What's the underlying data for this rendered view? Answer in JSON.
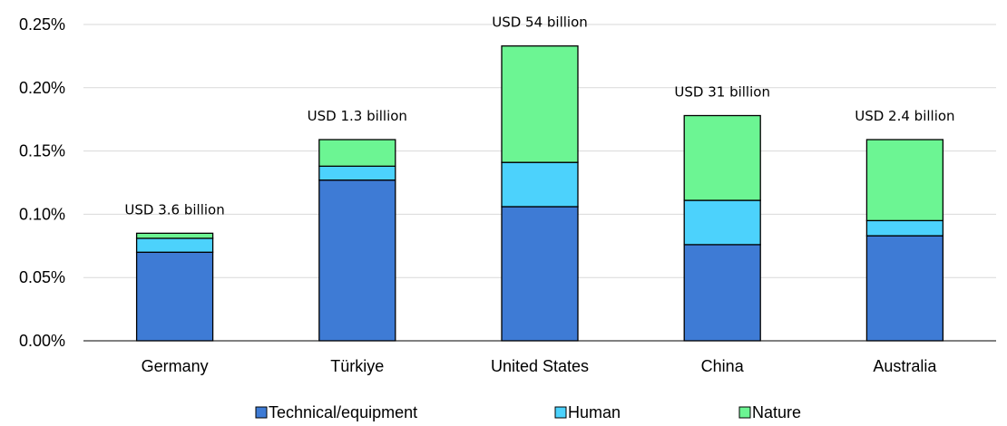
{
  "chart_data": {
    "type": "bar",
    "stacked": true,
    "categories": [
      "Germany",
      "Türkiye",
      "United States",
      "China",
      "Australia"
    ],
    "series": [
      {
        "name": "Technical/equipment",
        "color": "#3e7bd5",
        "values": [
          0.07,
          0.127,
          0.106,
          0.076,
          0.083
        ]
      },
      {
        "name": "Human",
        "color": "#4cd2fc",
        "values": [
          0.011,
          0.011,
          0.035,
          0.035,
          0.012
        ]
      },
      {
        "name": "Nature",
        "color": "#6cf593",
        "values": [
          0.004,
          0.021,
          0.092,
          0.067,
          0.064
        ]
      }
    ],
    "annotations": [
      "USD 3.6 billion",
      "USD 1.3 billion",
      "USD 54 billion",
      "USD 31 billion",
      "USD 2.4 billion"
    ],
    "yticks": [
      "0.00%",
      "0.05%",
      "0.10%",
      "0.15%",
      "0.20%",
      "0.25%"
    ],
    "ylim": [
      0,
      0.25
    ],
    "grid": true,
    "legend_position": "bottom",
    "title": "",
    "xlabel": "",
    "ylabel": ""
  }
}
